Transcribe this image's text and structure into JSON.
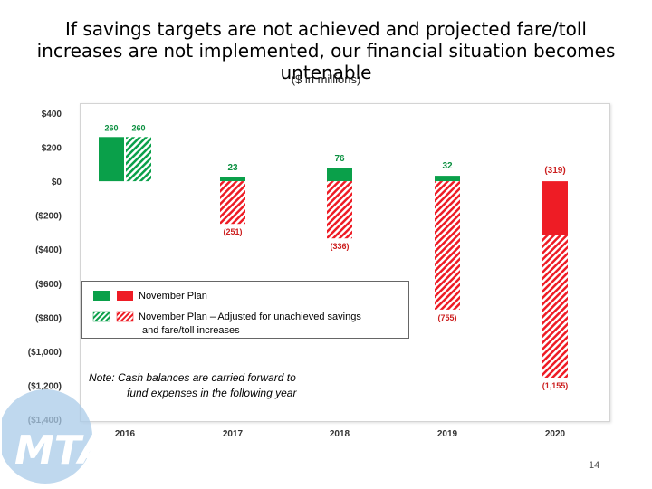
{
  "title_line1": "If savings targets are not achieved and projected fare/toll",
  "title_line2": "increases are not implemented, our financial situation becomes",
  "title_line3": "untenable",
  "subtitle": "($ in millions)",
  "legend": {
    "plan_label": "November Plan",
    "adjusted_line1": "November Plan – Adjusted for unachieved savings",
    "adjusted_line2": "and fare/toll increases"
  },
  "note": {
    "line1": "Note:  Cash balances are carried forward to",
    "line2": "fund expenses in the following year"
  },
  "page_number": "14",
  "logo_text": "MTA",
  "colors": {
    "green": "#0aa04a",
    "red": "#ee1c25",
    "green_label": "#0a8f3f",
    "red_label": "#cc1f1f"
  },
  "chart_data": {
    "type": "bar",
    "ylim": [
      -1400,
      400
    ],
    "yticks": [
      {
        "value": 400,
        "label": "$400"
      },
      {
        "value": 200,
        "label": "$200"
      },
      {
        "value": 0,
        "label": "$0"
      },
      {
        "value": -200,
        "label": "($200)"
      },
      {
        "value": -400,
        "label": "($400)"
      },
      {
        "value": -600,
        "label": "($600)"
      },
      {
        "value": -800,
        "label": "($800)"
      },
      {
        "value": -1000,
        "label": "($1,000)"
      },
      {
        "value": -1200,
        "label": "($1,200)"
      },
      {
        "value": -1400,
        "label": "($1,400)"
      }
    ],
    "categories": [
      "2016",
      "2017",
      "2018",
      "2019",
      "2020"
    ],
    "series": [
      {
        "name": "November Plan",
        "fill": "solid",
        "values": [
          260,
          23,
          76,
          32,
          -319
        ],
        "labels": [
          "260",
          "23",
          "76",
          "32",
          "(319)"
        ]
      },
      {
        "name": "November Plan – Adjusted for unachieved savings and fare/toll increases",
        "fill": "hatched",
        "values": [
          260,
          -251,
          -336,
          -755,
          -1155
        ],
        "labels": [
          "260",
          "(251)",
          "(336)",
          "(755)",
          "(1,155)"
        ]
      }
    ]
  }
}
